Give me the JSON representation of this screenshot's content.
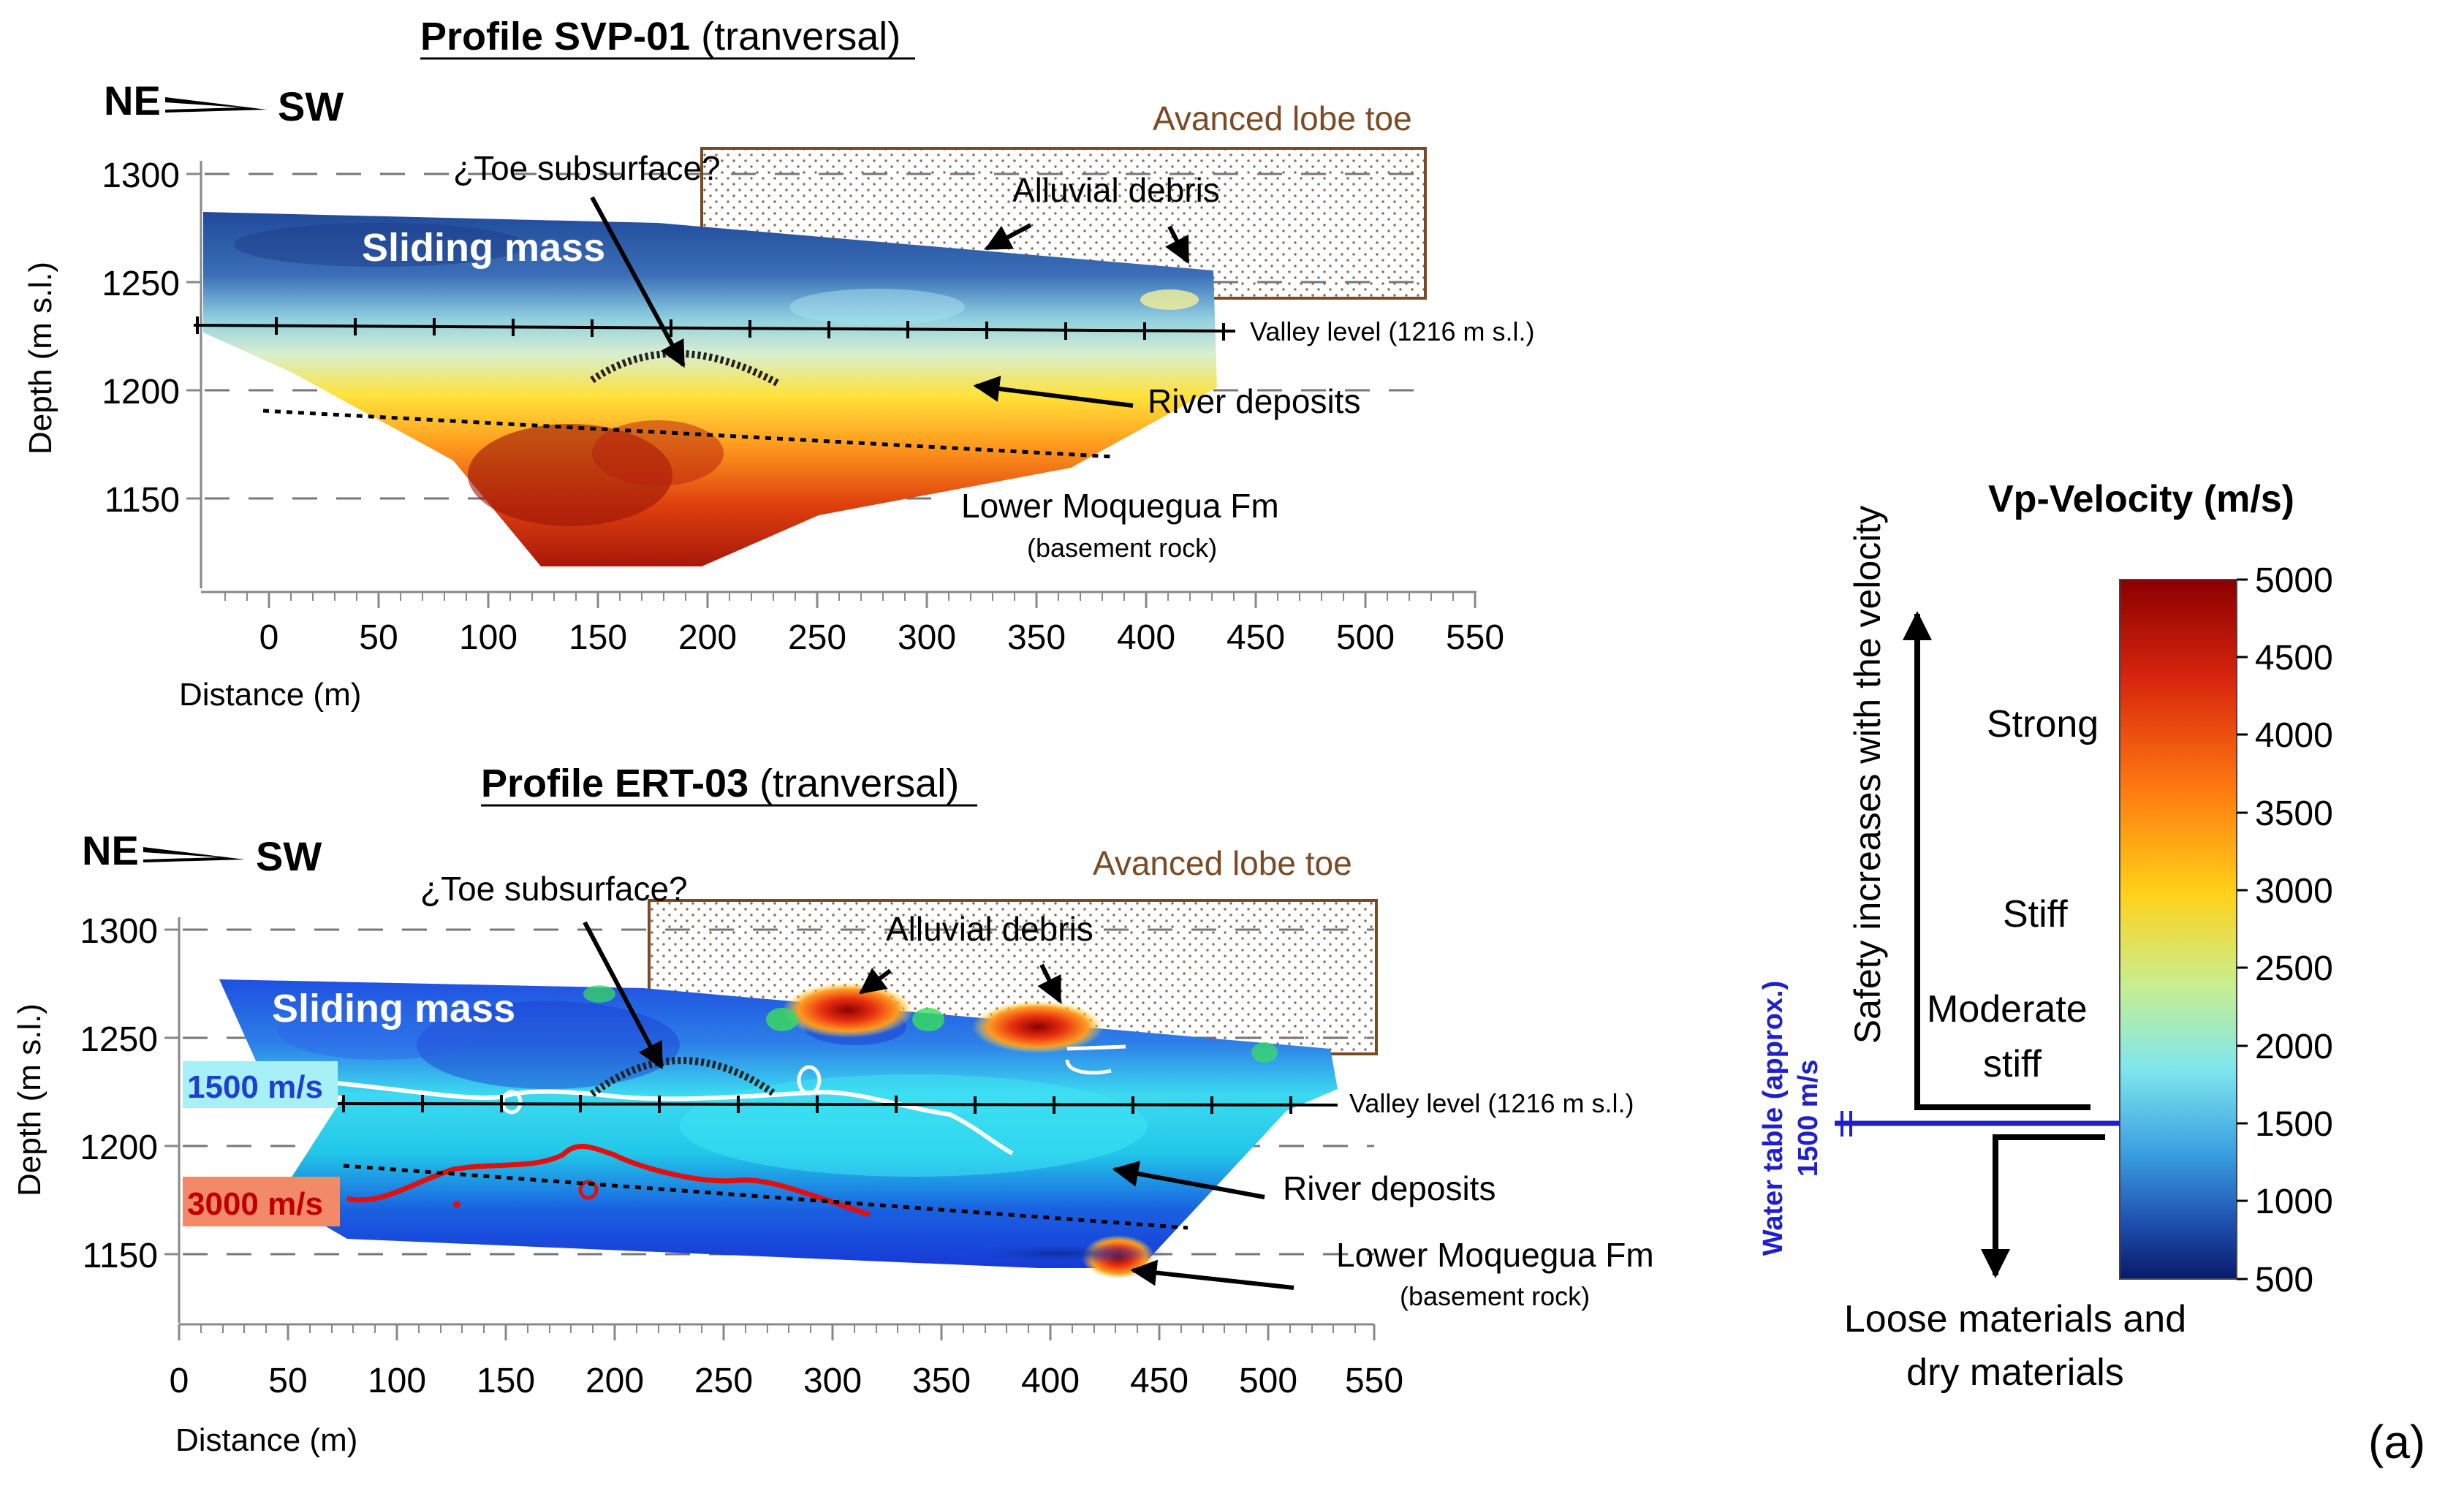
{
  "panel_label": "(a)",
  "compass": {
    "left": "NE",
    "right": "SW"
  },
  "top_profile": {
    "title_bold": "Profile SVP-01",
    "title_rest": " (tranversal)",
    "y_axis_title": "Depth (m s.l.)",
    "x_axis_title": "Distance (m)",
    "y_ticks": [
      "1300",
      "1250",
      "1200",
      "1150"
    ],
    "x_ticks": [
      "0",
      "50",
      "100",
      "150",
      "200",
      "250",
      "300",
      "350",
      "400",
      "450",
      "500",
      "550"
    ],
    "labels": {
      "lobe_toe": "Avanced lobe toe",
      "toe_subsurface": "¿Toe subsurface?",
      "alluvial": "Alluvial debris",
      "sliding_mass": "Sliding mass",
      "valley_level": "Valley level (1216 m s.l.)",
      "river_deposits": "River deposits",
      "moquegua": "Lower Moquegua Fm",
      "basement": "(basement rock)"
    }
  },
  "bottom_profile": {
    "title_bold": "Profile ERT-03",
    "title_rest": " (tranversal)",
    "y_axis_title": "Depth (m s.l.)",
    "x_axis_title": "Distance (m)",
    "y_ticks": [
      "1300",
      "1250",
      "1200",
      "1150"
    ],
    "x_ticks": [
      "0",
      "50",
      "100",
      "150",
      "200",
      "250",
      "300",
      "350",
      "400",
      "450",
      "500",
      "550"
    ],
    "labels": {
      "lobe_toe": "Avanced lobe toe",
      "toe_subsurface": "¿Toe subsurface?",
      "alluvial": "Alluvial debris",
      "sliding_mass": "Sliding mass",
      "valley_level": "Valley level (1216 m s.l.)",
      "river_deposits": "River deposits",
      "moquegua": "Lower Moquegua Fm",
      "basement": "(basement rock)",
      "v1500": "1500 m/s",
      "v3000": "3000 m/s"
    }
  },
  "legend": {
    "title": "Vp-Velocity (m/s)",
    "ticks": [
      "5000",
      "4500",
      "4000",
      "3500",
      "3000",
      "2500",
      "2000",
      "1500",
      "1000",
      "500"
    ],
    "safety": "Safety increases with the velocity",
    "strong": "Strong",
    "stiff": "Stiff",
    "moderate_1": "Moderate",
    "moderate_2": "stiff",
    "water_table_1": "Water table (approx.)",
    "water_table_2": "1500 m/s",
    "loose_1": "Loose materials and",
    "loose_2": "dry materials",
    "colors": {
      "water_table": "#1f1fcc",
      "v1500_bg": "#a8f0f8",
      "v1500_text": "#1f3fd0",
      "v3000_bg": "#f28a6a",
      "v3000_text": "#c00000"
    }
  }
}
